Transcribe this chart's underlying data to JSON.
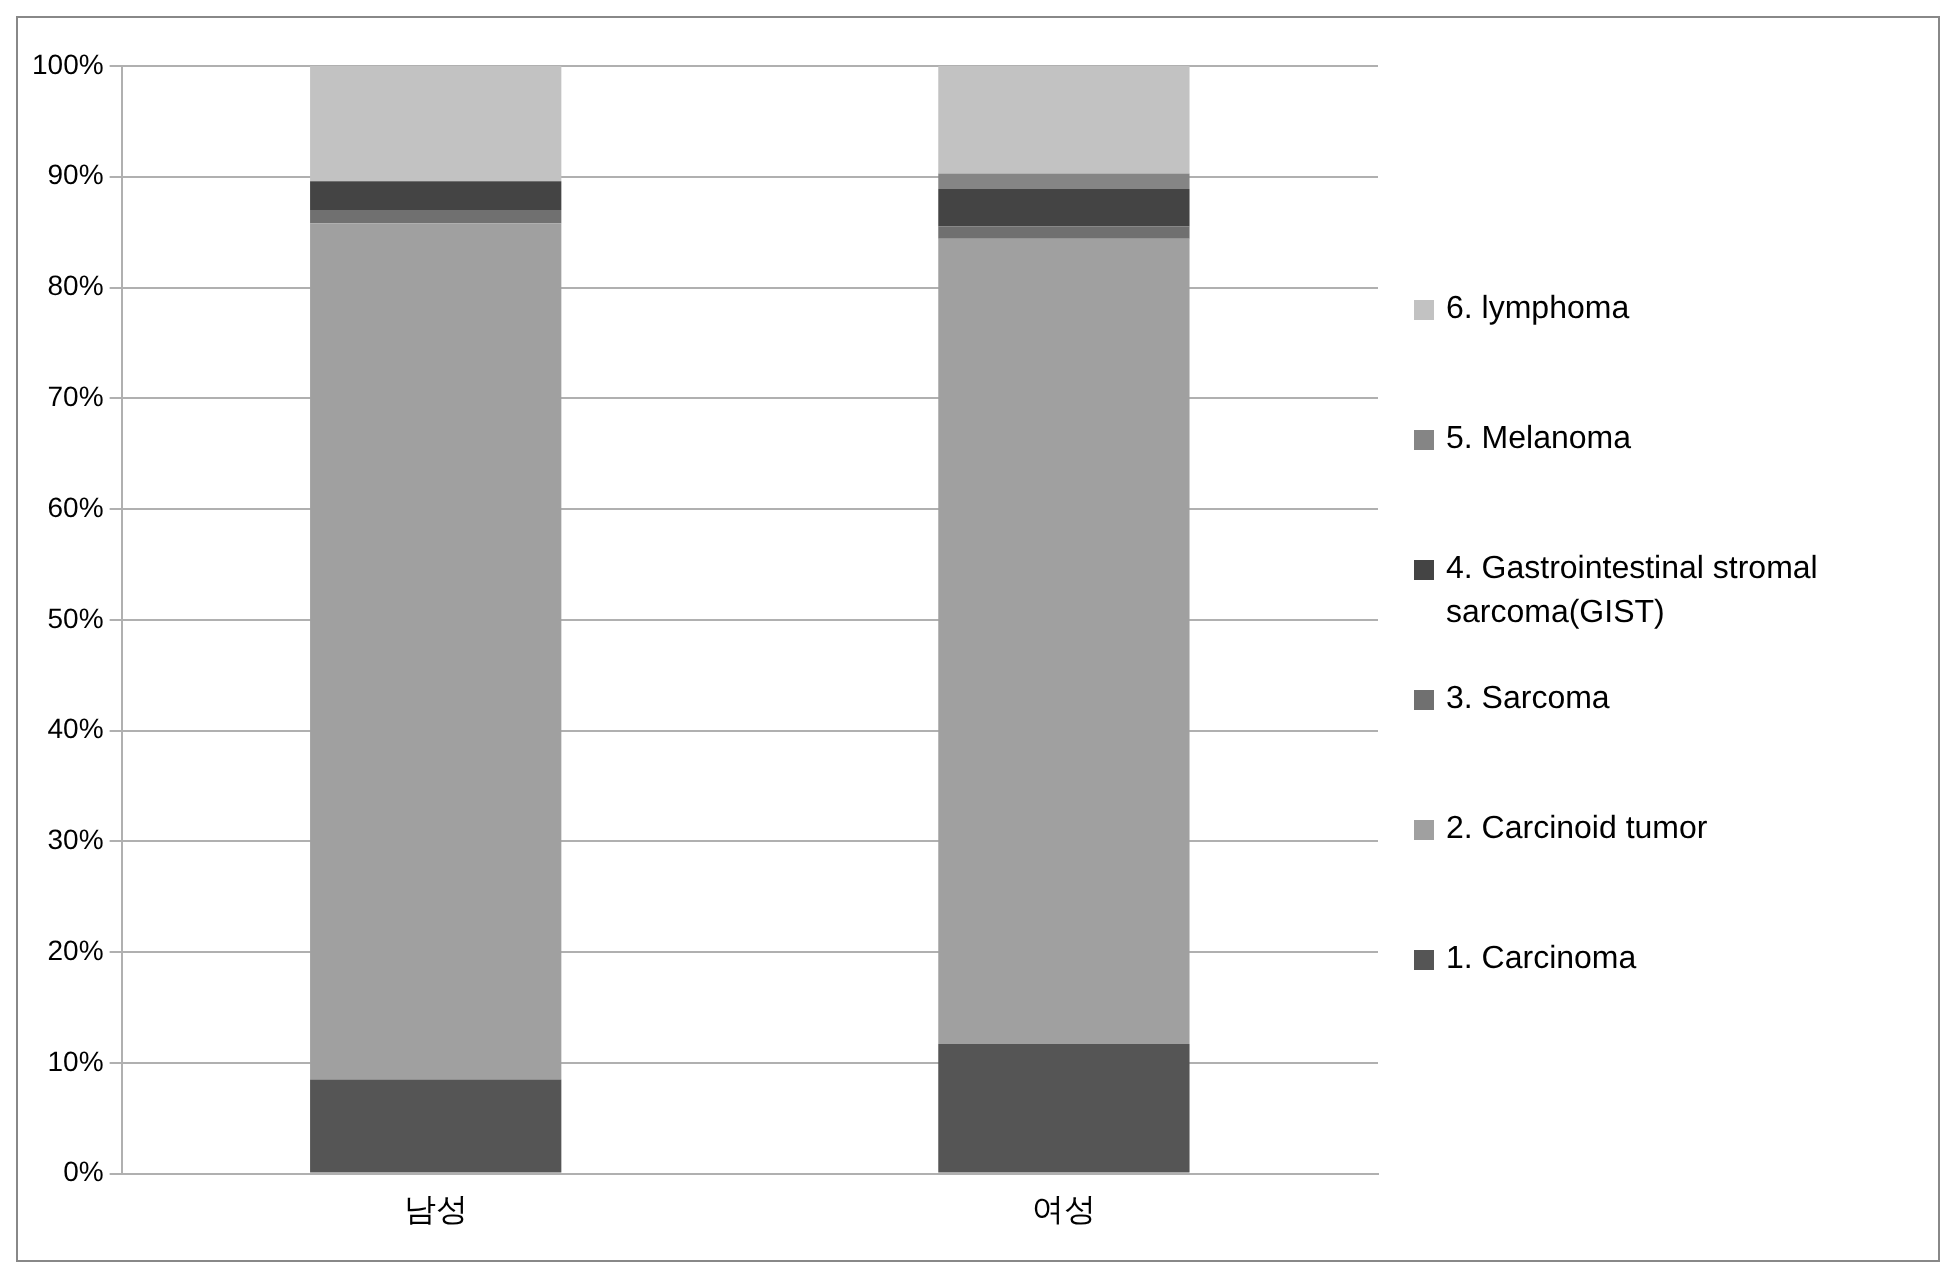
{
  "chart_data": {
    "type": "bar",
    "stacked": true,
    "categories": [
      "남성",
      "여성"
    ],
    "series": [
      {
        "name": "1. Carcinoma",
        "color": "#555555",
        "values": [
          8.5,
          11.7
        ]
      },
      {
        "name": "2. Carcinoid tumor",
        "color": "#a0a0a0",
        "values": [
          77.3,
          72.7
        ]
      },
      {
        "name": "3. Sarcoma",
        "color": "#707070",
        "values": [
          1.2,
          1.1
        ]
      },
      {
        "name": "4. Gastrointestinal stromal sarcoma(GIST)",
        "color": "#444444",
        "values": [
          2.6,
          3.4
        ]
      },
      {
        "name": "5. Melanoma",
        "color": "#858585",
        "values": [
          0,
          1.4
        ]
      },
      {
        "name": "6. lymphoma",
        "color": "#c2c2c2",
        "values": [
          10.4,
          9.7
        ]
      }
    ],
    "ylim": [
      0,
      100
    ],
    "yticks": [
      {
        "value": 0,
        "label": "0%"
      },
      {
        "value": 10,
        "label": "10%"
      },
      {
        "value": 20,
        "label": "20%"
      },
      {
        "value": 30,
        "label": "30%"
      },
      {
        "value": 40,
        "label": "40%"
      },
      {
        "value": 50,
        "label": "50%"
      },
      {
        "value": 60,
        "label": "60%"
      },
      {
        "value": 70,
        "label": "70%"
      },
      {
        "value": 80,
        "label": "80%"
      },
      {
        "value": 90,
        "label": "90%"
      },
      {
        "value": 100,
        "label": "100%"
      }
    ],
    "grid": "y",
    "legend": "right"
  }
}
